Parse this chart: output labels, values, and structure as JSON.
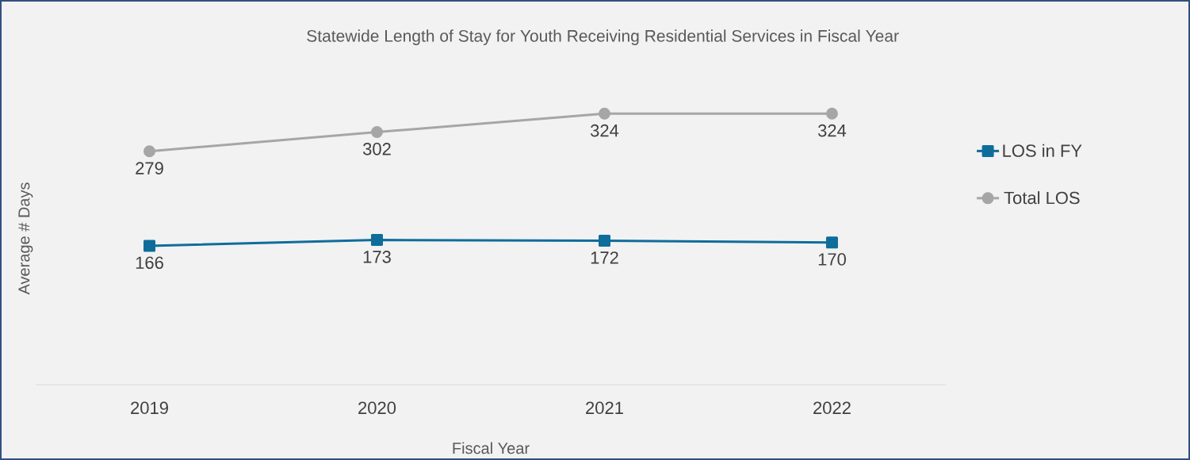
{
  "chart_data": {
    "type": "line",
    "title": "Statewide Length of Stay for Youth Receiving Residential Services in Fiscal Year",
    "xlabel": "Fiscal Year",
    "ylabel": "Average # Days",
    "categories": [
      "2019",
      "2020",
      "2021",
      "2022"
    ],
    "series": [
      {
        "name": "LOS in FY",
        "color": "#0f6d9b",
        "values": [
          166,
          173,
          172,
          170
        ],
        "marker": "square"
      },
      {
        "name": "Total LOS",
        "color": "#a6a6a6",
        "values": [
          279,
          302,
          324,
          324
        ],
        "marker": "circle"
      }
    ],
    "data_labels": true,
    "legend": "right"
  }
}
